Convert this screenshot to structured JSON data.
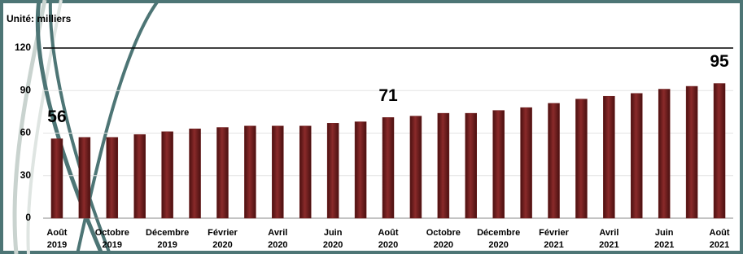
{
  "chart_data": {
    "type": "bar",
    "title": "Unité: milliers",
    "categories": [
      "Août 2019",
      null,
      "Octobre 2019",
      null,
      "Décembre 2019",
      null,
      "Février 2020",
      null,
      "Avril 2020",
      null,
      "Juin 2020",
      null,
      "Août 2020",
      null,
      "Octobre 2020",
      null,
      "Décembre 2020",
      null,
      "Février 2021",
      null,
      "Avril 2021",
      null,
      "Juin 2021",
      null,
      "Août 2021"
    ],
    "values": [
      56,
      57,
      57,
      59,
      61,
      63,
      64,
      65,
      65,
      65,
      67,
      68,
      71,
      72,
      74,
      74,
      76,
      78,
      81,
      84,
      86,
      88,
      91,
      93,
      95
    ],
    "value_labels": [
      "56",
      null,
      null,
      null,
      null,
      null,
      null,
      null,
      null,
      null,
      null,
      null,
      "71",
      null,
      null,
      null,
      null,
      null,
      null,
      null,
      null,
      null,
      null,
      null,
      "95"
    ],
    "color": "#6e1c1c",
    "ylim": [
      0,
      120
    ],
    "yticks": [
      0,
      30,
      60,
      90,
      120
    ],
    "grid": true
  }
}
